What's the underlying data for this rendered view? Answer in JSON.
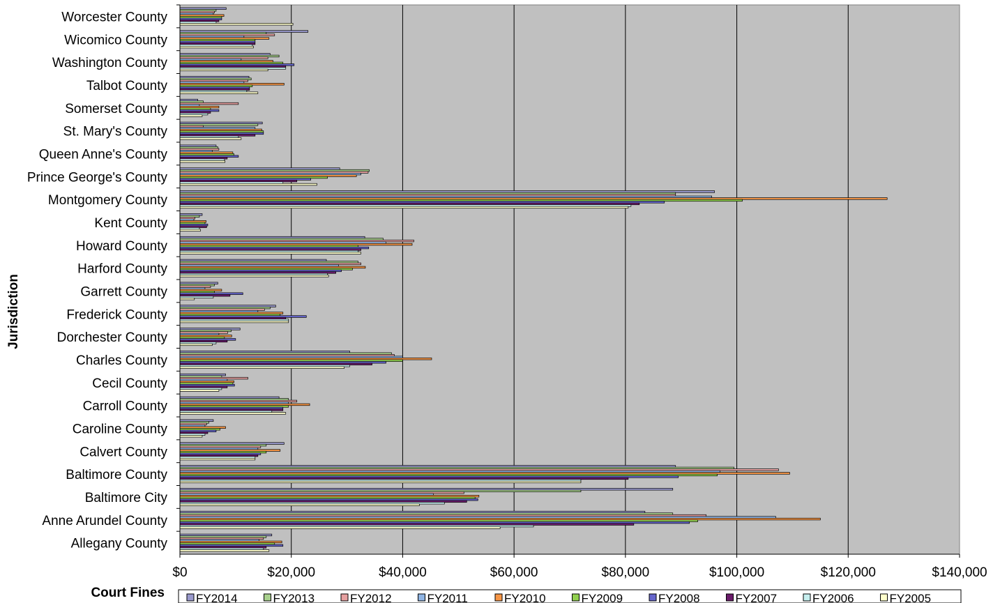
{
  "chart_data": {
    "type": "bar",
    "orientation": "horizontal",
    "xlabel": "Court Fines",
    "ylabel": "Jurisdiction",
    "xlim": [
      0,
      140000
    ],
    "x_ticks": [
      0,
      20000,
      40000,
      60000,
      80000,
      100000,
      120000,
      140000
    ],
    "x_tick_labels": [
      "$0",
      "$20,000",
      "$40,000",
      "$60,000",
      "$80,000",
      "$100,000",
      "$120,000",
      "$140,000"
    ],
    "grid": "vertical major gridlines",
    "plot_background": "#c0c0c0",
    "legend_position": "bottom",
    "categories": [
      "Allegany County",
      "Anne Arundel County",
      "Baltimore City",
      "Baltimore County",
      "Calvert County",
      "Caroline County",
      "Carroll County",
      "Cecil County",
      "Charles County",
      "Dorchester County",
      "Frederick County",
      "Garrett County",
      "Harford County",
      "Howard County",
      "Kent County",
      "Montgomery County",
      "Prince George's County",
      "Queen Anne's County",
      "St. Mary's County",
      "Somerset County",
      "Talbot County",
      "Washington County",
      "Wicomico County",
      "Worcester County"
    ],
    "series": [
      {
        "name": "FY2014",
        "color": "#9999cc",
        "values": [
          16500,
          83500,
          88500,
          89000,
          18700,
          6000,
          17800,
          8200,
          30500,
          10800,
          17200,
          6800,
          26300,
          33200,
          4000,
          96000,
          28700,
          6500,
          14800,
          3200,
          12400,
          16200,
          23000,
          8300
        ]
      },
      {
        "name": "FY2013",
        "color": "#a9d18e",
        "values": [
          15500,
          88500,
          72000,
          99500,
          15500,
          5200,
          19500,
          7500,
          38000,
          9200,
          16200,
          6200,
          32000,
          36500,
          3500,
          89000,
          34000,
          6800,
          14000,
          4200,
          12800,
          17800,
          15500,
          6500
        ]
      },
      {
        "name": "FY2012",
        "color": "#e6a0a0",
        "values": [
          15000,
          94500,
          51000,
          107500,
          14500,
          4800,
          21000,
          12200,
          38500,
          8600,
          15200,
          5500,
          32500,
          42000,
          2700,
          89000,
          33800,
          7000,
          4200,
          10500,
          12200,
          15800,
          17000,
          6200
        ]
      },
      {
        "name": "FY2011",
        "color": "#8fb4e3",
        "values": [
          14200,
          107000,
          45500,
          97000,
          14000,
          4500,
          19500,
          8500,
          40000,
          7000,
          14000,
          4500,
          28500,
          37000,
          2500,
          95500,
          32500,
          5800,
          13500,
          3500,
          11500,
          11000,
          11500,
          6000
        ]
      },
      {
        "name": "FY2010",
        "color": "#f79646",
        "values": [
          18300,
          115000,
          53700,
          109500,
          18000,
          8200,
          23300,
          9700,
          45200,
          9300,
          18500,
          7500,
          33300,
          41700,
          4700,
          127000,
          31700,
          9500,
          14700,
          7000,
          18700,
          16700,
          16000,
          7900
        ]
      },
      {
        "name": "FY2009",
        "color": "#92d050",
        "values": [
          17000,
          93000,
          53000,
          96500,
          15500,
          7200,
          19500,
          9500,
          40000,
          8000,
          18000,
          6200,
          31000,
          32000,
          4500,
          101000,
          26500,
          9700,
          15000,
          5500,
          13000,
          18500,
          13500,
          7500
        ]
      },
      {
        "name": "FY2008",
        "color": "#6666cc",
        "values": [
          18500,
          91500,
          53500,
          89500,
          14500,
          6500,
          18500,
          9800,
          37000,
          10000,
          22700,
          11300,
          29000,
          33900,
          5000,
          87000,
          23500,
          10500,
          15000,
          7000,
          12500,
          20500,
          13500,
          7500
        ]
      },
      {
        "name": "FY2007",
        "color": "#6a1b6a",
        "values": [
          15500,
          81500,
          51500,
          80500,
          14000,
          5000,
          18500,
          8500,
          34500,
          8500,
          19000,
          9000,
          28000,
          32500,
          4800,
          82500,
          21000,
          8500,
          13500,
          5500,
          12500,
          19000,
          13500,
          7000
        ]
      },
      {
        "name": "FY2006",
        "color": "#c6efef",
        "values": [
          15000,
          63500,
          47500,
          72000,
          13500,
          4500,
          16500,
          7500,
          30500,
          6500,
          19500,
          6000,
          26500,
          32000,
          3500,
          81000,
          18500,
          8000,
          10500,
          5000,
          12000,
          19000,
          13000,
          6500
        ]
      },
      {
        "name": "FY2005",
        "color": "#ffffcc",
        "values": [
          16000,
          57500,
          43000,
          72000,
          13500,
          4000,
          19000,
          7000,
          29500,
          5800,
          19500,
          2600,
          26700,
          32500,
          3700,
          80500,
          24600,
          8100,
          11000,
          4000,
          14000,
          15800,
          13200,
          20300
        ]
      }
    ]
  }
}
